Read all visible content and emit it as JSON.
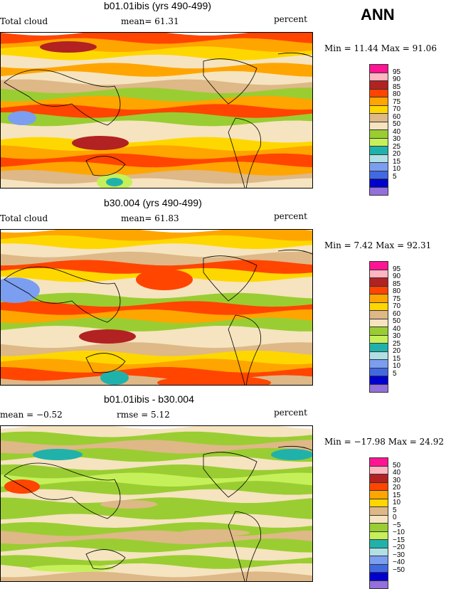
{
  "season": "ANN",
  "palette": [
    "#ff1493",
    "#ffb6c1",
    "#b22222",
    "#ff4500",
    "#ffa500",
    "#ffd700",
    "#deb887",
    "#f5e4bf",
    "#9acd32",
    "#c6f05a",
    "#20b2aa",
    "#b0e0e6",
    "#7b9ef0",
    "#4169e1",
    "#0000cd",
    "#9370db"
  ],
  "panels": [
    {
      "title": "b01.01ibis (yrs 490-499)",
      "left_label": "Total cloud",
      "center_label": "mean=  61.31",
      "units": "percent",
      "minmax": "Min =   11.44 Max =   91.06",
      "levels": [
        "95",
        "90",
        "85",
        "80",
        "75",
        "70",
        "60",
        "50",
        "40",
        "30",
        "25",
        "20",
        "15",
        "10",
        "5"
      ]
    },
    {
      "title": "b30.004 (yrs 490-499)",
      "left_label": "Total cloud",
      "center_label": "mean=  61.83",
      "units": "percent",
      "minmax": "Min =    7.42 Max =   92.31",
      "levels": [
        "95",
        "90",
        "85",
        "80",
        "75",
        "70",
        "60",
        "50",
        "40",
        "30",
        "25",
        "20",
        "15",
        "10",
        "5"
      ]
    },
    {
      "title": "b01.01ibis - b30.004",
      "left_label": "mean =  −0.52",
      "center_label": "rmse =    5.12",
      "units": "percent",
      "minmax": "Min = −17.98 Max =   24.92",
      "levels": [
        "50",
        "40",
        "30",
        "20",
        "15",
        "10",
        "5",
        "0",
        "−5",
        "−10",
        "−15",
        "−20",
        "−30",
        "−40",
        "−50"
      ]
    }
  ]
}
